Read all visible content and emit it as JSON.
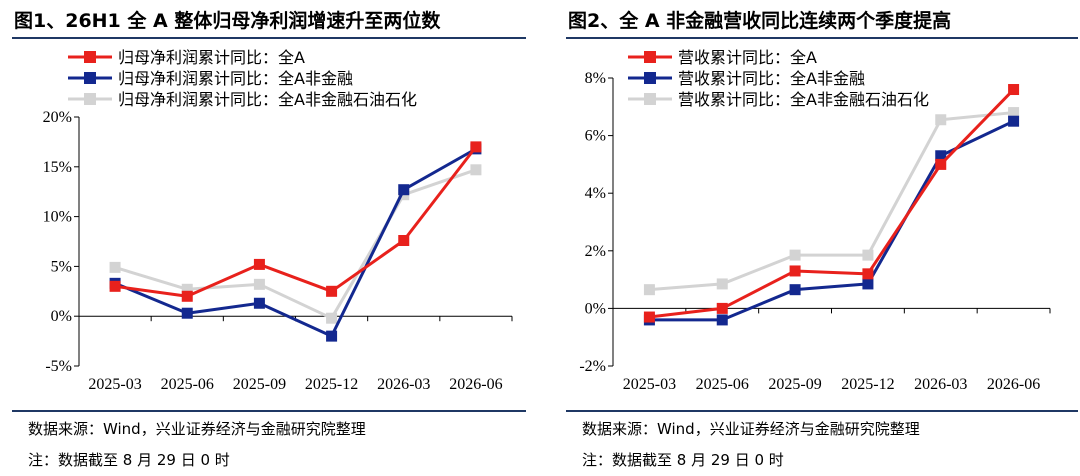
{
  "chart_data": [
    {
      "type": "line",
      "title": "图1、26H1 全 A 整体归母净利润增速升至两位数",
      "categories": [
        "2025-03",
        "2025-06",
        "2025-09",
        "2025-12",
        "2026-03",
        "2026-06"
      ],
      "y_ticks": [
        "-5%",
        "0%",
        "5%",
        "10%",
        "15%",
        "20%"
      ],
      "ylim": [
        -5,
        20
      ],
      "grid": false,
      "legend_position": "top-left",
      "series": [
        {
          "name": "归母净利润累计同比：全A",
          "color": "#e8211c",
          "values": [
            3.0,
            2.0,
            5.2,
            2.5,
            7.6,
            17.0
          ]
        },
        {
          "name": "归母净利润累计同比：全A非金融",
          "color": "#13288f",
          "values": [
            3.3,
            0.3,
            1.3,
            -2.0,
            12.7,
            16.8
          ]
        },
        {
          "name": "归母净利润累计同比：全A非金融石油石化",
          "color": "#d3d3d3",
          "values": [
            4.9,
            2.7,
            3.2,
            -0.2,
            12.2,
            14.7
          ]
        }
      ],
      "source": "数据来源：Wind，兴业证券经济与金融研究院整理",
      "footnote": "注：数据截至 8 月 29 日 0 时"
    },
    {
      "type": "line",
      "title": "图2、全 A 非金融营收同比连续两个季度提高",
      "categories": [
        "2025-03",
        "2025-06",
        "2025-09",
        "2025-12",
        "2026-03",
        "2026-06"
      ],
      "y_ticks": [
        "-2%",
        "0%",
        "2%",
        "4%",
        "6%",
        "8%"
      ],
      "ylim": [
        -2,
        8
      ],
      "grid": false,
      "legend_position": "top-left",
      "series": [
        {
          "name": "营收累计同比：全A",
          "color": "#e8211c",
          "values": [
            -0.3,
            0.0,
            1.3,
            1.2,
            5.0,
            7.6
          ]
        },
        {
          "name": "营收累计同比：全A非金融",
          "color": "#13288f",
          "values": [
            -0.4,
            -0.4,
            0.65,
            0.85,
            5.3,
            6.5
          ]
        },
        {
          "name": "营收累计同比：全A非金融石油石化",
          "color": "#d3d3d3",
          "values": [
            0.65,
            0.85,
            1.85,
            1.85,
            6.55,
            6.8
          ]
        }
      ],
      "source": "数据来源：Wind，兴业证券经济与金融研究院整理",
      "footnote": "注：数据截至 8 月 29 日 0 时"
    }
  ]
}
